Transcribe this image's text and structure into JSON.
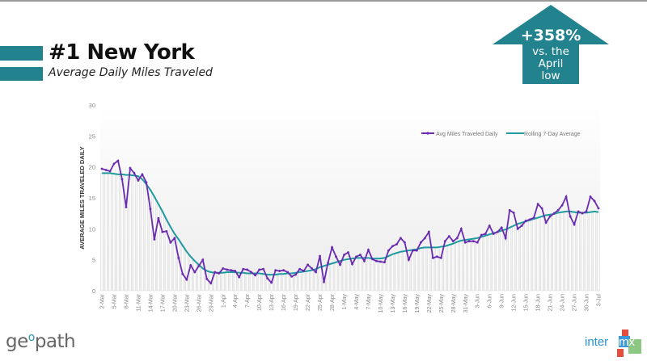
{
  "header": {
    "title": "#1 New York",
    "subtitle": "Average Daily Miles Traveled"
  },
  "callout": {
    "percent": "+358%",
    "line1": "vs. the",
    "line2": "April",
    "line3": "low",
    "color": "#22838f"
  },
  "logos": {
    "left": "geopath",
    "right": "intermx"
  },
  "chart_data": {
    "type": "line",
    "title": "Average Daily Miles Traveled",
    "xlabel": "",
    "ylabel": "AVERAGE MILES TRAVELED DAILY",
    "ylim": [
      0,
      30
    ],
    "yticks": [
      "0",
      "5",
      "10",
      "15",
      "20",
      "25",
      "30"
    ],
    "xticks": [
      "2-Mar",
      "5-Mar",
      "8-Mar",
      "11-Mar",
      "14-Mar",
      "17-Mar",
      "20-Mar",
      "23-Mar",
      "26-Mar",
      "29-Mar",
      "1-Apr",
      "4-Apr",
      "7-Apr",
      "10-Apr",
      "13-Apr",
      "16-Apr",
      "19-Apr",
      "22-Apr",
      "25-Apr",
      "28-Apr",
      "1-May",
      "4-May",
      "7-May",
      "10-May",
      "13-May",
      "16-May",
      "19-May",
      "22-May",
      "25-May",
      "28-May",
      "31-May",
      "3-Jun",
      "6-Jun",
      "9-Jun",
      "12-Jun",
      "15-Jun",
      "18-Jun",
      "21-Jun",
      "24-Jun",
      "27-Jun",
      "30-Jun",
      "3-Jul"
    ],
    "x_start": "2-Mar",
    "x_end": "3-Jul",
    "legend_position": "top-right",
    "grid": false,
    "series": [
      {
        "name": "Avg Miles Traveled Daily",
        "color": "#6a2bb0",
        "values": [
          19.7,
          19.5,
          19.3,
          20.5,
          21,
          18,
          13.5,
          19.8,
          19,
          17.8,
          18.8,
          17.5,
          13.2,
          8.3,
          11.7,
          9.5,
          9.6,
          7.8,
          8.5,
          5.3,
          2.7,
          1.8,
          4.1,
          3.0,
          4.0,
          5.0,
          1.9,
          1.2,
          3.0,
          2.8,
          3.6,
          3.4,
          3.3,
          3.2,
          2.2,
          3.5,
          3.4,
          3.0,
          2.5,
          3.4,
          3.5,
          2.0,
          1.3,
          3.3,
          3.2,
          3.3,
          3.0,
          2.3,
          2.6,
          3.5,
          3.2,
          4.2,
          3.6,
          3.0,
          5.6,
          1.4,
          4.5,
          7.0,
          5.5,
          4.2,
          5.8,
          6.2,
          4.3,
          5.5,
          5.8,
          4.8,
          6.6,
          5.1,
          4.8,
          4.7,
          4.6,
          6.5,
          7.2,
          7.5,
          8.5,
          7.8,
          5.0,
          6.5,
          6.5,
          7.8,
          8.5,
          9.5,
          5.3,
          5.5,
          5.3,
          8.0,
          8.8,
          8.0,
          8.5,
          10.0,
          7.8,
          8.0,
          8.0,
          7.8,
          9.0,
          9.2,
          10.5,
          9.2,
          9.5,
          10.2,
          8.5,
          13.0,
          12.6,
          10.0,
          10.5,
          11.3,
          11.5,
          11.8,
          14.0,
          13.3,
          11.0,
          12.0,
          12.5,
          13.0,
          13.8,
          15.2,
          12.0,
          10.7,
          12.8,
          12.5,
          12.8,
          15.2,
          14.5,
          13.3
        ]
      },
      {
        "name": "Rolling 7-Day Average",
        "color": "#1f9aa0",
        "values": [
          19,
          19,
          19,
          18.9,
          18.8,
          18.8,
          18.7,
          18.7,
          18.6,
          18.5,
          18,
          17.2,
          16.3,
          15.2,
          14,
          12.8,
          11.5,
          10.3,
          9.2,
          8.3,
          7.3,
          6.3,
          5.5,
          4.8,
          4.2,
          3.6,
          3.2,
          3.0,
          2.9,
          2.9,
          2.9,
          3.0,
          3.0,
          3.0,
          2.9,
          2.9,
          2.8,
          2.8,
          2.8,
          2.8,
          2.7,
          2.6,
          2.6,
          2.6,
          2.7,
          2.7,
          2.8,
          2.8,
          2.9,
          3.0,
          3.1,
          3.2,
          3.3,
          3.5,
          3.8,
          4.0,
          4.2,
          4.4,
          4.6,
          4.8,
          5.0,
          5.1,
          5.2,
          5.3,
          5.3,
          5.3,
          5.3,
          5.2,
          5.2,
          5.2,
          5.3,
          5.6,
          5.9,
          6.1,
          6.3,
          6.4,
          6.5,
          6.6,
          6.7,
          6.9,
          7.0,
          7.0,
          7.0,
          7.0,
          7.1,
          7.2,
          7.4,
          7.6,
          7.9,
          8.1,
          8.2,
          8.3,
          8.4,
          8.5,
          8.7,
          8.9,
          9.1,
          9.3,
          9.5,
          9.7,
          9.9,
          10.2,
          10.5,
          10.8,
          11.0,
          11.2,
          11.4,
          11.6,
          11.8,
          12.0,
          12.2,
          12.3,
          12.4,
          12.6,
          12.7,
          12.8,
          12.8,
          12.7,
          12.6,
          12.6,
          12.6,
          12.7,
          12.8,
          12.7
        ]
      }
    ]
  }
}
